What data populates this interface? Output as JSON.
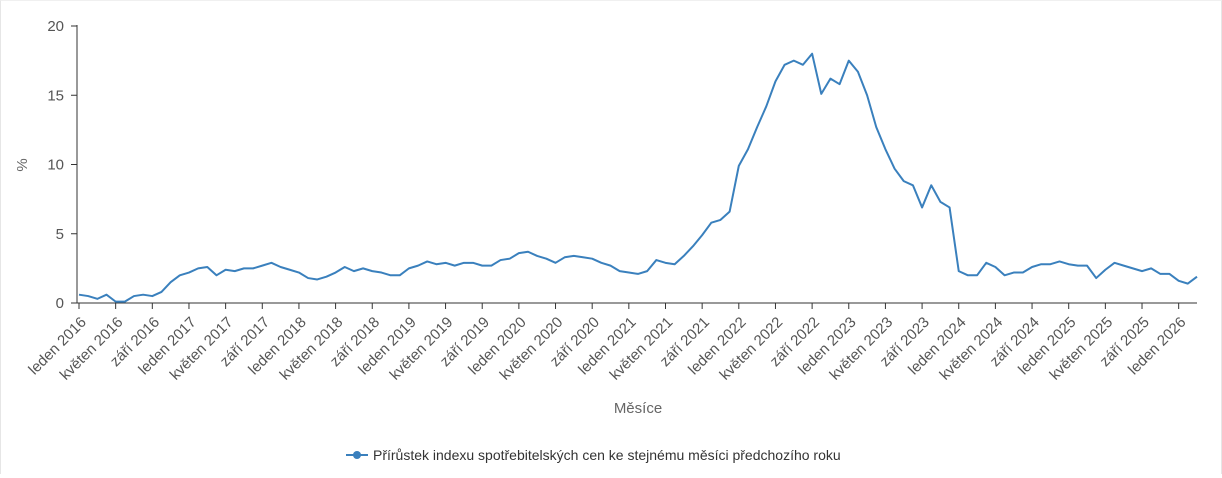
{
  "chart_data": {
    "type": "line",
    "title": "",
    "xlabel": "Měsíce",
    "ylabel": "%",
    "ylim": [
      0,
      20
    ],
    "yticks": [
      0,
      5,
      10,
      15,
      20
    ],
    "grid": false,
    "legend_position": "bottom",
    "color": "#3a80bd",
    "x_tick_labels": [
      "leden 2016",
      "květen 2016",
      "září 2016",
      "leden 2017",
      "květen 2017",
      "září 2017",
      "leden 2018",
      "květen 2018",
      "září 2018",
      "leden 2019",
      "květen 2019",
      "září 2019",
      "leden 2020",
      "květen 2020",
      "září 2020",
      "leden 2021",
      "květen 2021",
      "září 2021",
      "leden 2022",
      "květen 2022",
      "září 2022",
      "leden 2023",
      "květen 2023",
      "září 2023",
      "leden 2024",
      "květen 2024",
      "září 2024",
      "leden 2025",
      "květen 2025",
      "září 2025",
      "leden 2026"
    ],
    "x_start": "2016-01",
    "x_end": "2026-02",
    "series": [
      {
        "name": "Přírůstek indexu spotřebitelských cen ke stejnému měsíci předchozího roku",
        "values": [
          0.6,
          0.5,
          0.3,
          0.6,
          0.1,
          0.1,
          0.5,
          0.6,
          0.5,
          0.8,
          1.5,
          2.0,
          2.2,
          2.5,
          2.6,
          2.0,
          2.4,
          2.3,
          2.5,
          2.5,
          2.7,
          2.9,
          2.6,
          2.4,
          2.2,
          1.8,
          1.7,
          1.9,
          2.2,
          2.6,
          2.3,
          2.5,
          2.3,
          2.2,
          2.0,
          2.0,
          2.5,
          2.7,
          3.0,
          2.8,
          2.9,
          2.7,
          2.9,
          2.9,
          2.7,
          2.7,
          3.1,
          3.2,
          3.6,
          3.7,
          3.4,
          3.2,
          2.9,
          3.3,
          3.4,
          3.3,
          3.2,
          2.9,
          2.7,
          2.3,
          2.2,
          2.1,
          2.3,
          3.1,
          2.9,
          2.8,
          3.4,
          4.1,
          4.9,
          5.8,
          6.0,
          6.6,
          9.9,
          11.1,
          12.7,
          14.2,
          16.0,
          17.2,
          17.5,
          17.2,
          18.0,
          15.1,
          16.2,
          15.8,
          17.5,
          16.7,
          15.0,
          12.7,
          11.1,
          9.7,
          8.8,
          8.5,
          6.9,
          8.5,
          7.3,
          6.9,
          2.3,
          2.0,
          2.0,
          2.9,
          2.6,
          2.0,
          2.2,
          2.2,
          2.6,
          2.8,
          2.8,
          3.0,
          2.8,
          2.7,
          2.7,
          1.8,
          2.4,
          2.9,
          2.7,
          2.5,
          2.3,
          2.5,
          2.1,
          2.1,
          1.6,
          1.4,
          1.9
        ]
      }
    ]
  }
}
